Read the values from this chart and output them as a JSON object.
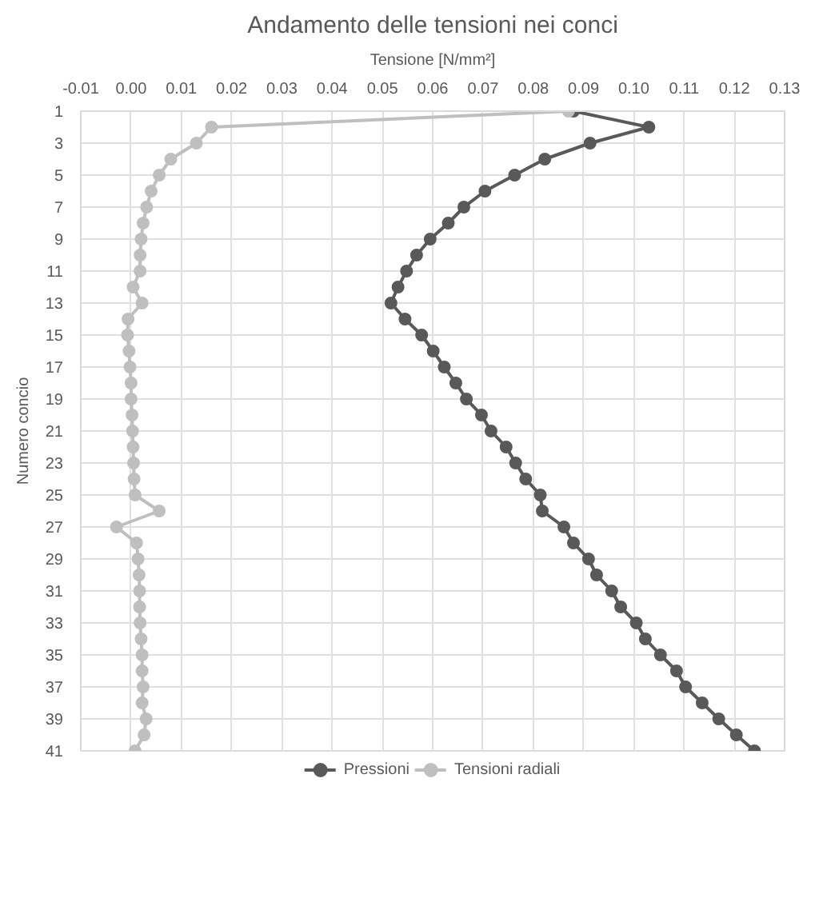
{
  "chart_data": {
    "type": "line",
    "title": "Andamento delle tensioni nei conci",
    "xlabel": "Tensione [N/mm²]",
    "ylabel": "Numero concio",
    "orientation": "horizontal",
    "x": [
      1,
      2,
      3,
      4,
      5,
      6,
      7,
      8,
      9,
      10,
      11,
      12,
      13,
      14,
      15,
      16,
      17,
      18,
      19,
      20,
      21,
      22,
      23,
      24,
      25,
      26,
      27,
      28,
      29,
      30,
      31,
      32,
      33,
      34,
      35,
      36,
      37,
      38,
      39,
      40,
      41
    ],
    "series": [
      {
        "name": "Pressioni",
        "color": "#595959",
        "values": [
          0.088,
          0.103,
          0.0913,
          0.0823,
          0.0763,
          0.0704,
          0.0662,
          0.0631,
          0.0595,
          0.0568,
          0.0548,
          0.0531,
          0.0517,
          0.0545,
          0.0578,
          0.0601,
          0.0623,
          0.0646,
          0.0667,
          0.0697,
          0.0716,
          0.0746,
          0.0765,
          0.0785,
          0.0814,
          0.0818,
          0.0861,
          0.088,
          0.091,
          0.0926,
          0.0956,
          0.0974,
          0.1005,
          0.1023,
          0.1053,
          0.1085,
          0.1103,
          0.1136,
          0.1169,
          0.1204,
          0.124
        ]
      },
      {
        "name": "Tensioni radiali",
        "color": "#bfbfbf",
        "values": [
          0.087,
          0.016,
          0.013,
          0.0079,
          0.0056,
          0.004,
          0.0031,
          0.0024,
          0.002,
          0.0018,
          0.0018,
          0.0004,
          0.0022,
          -0.0006,
          -0.0007,
          -0.0004,
          -0.0002,
          0.0,
          0.0,
          0.0002,
          0.0003,
          0.0004,
          0.0005,
          0.0006,
          0.0008,
          0.0056,
          -0.0029,
          0.0011,
          0.0014,
          0.0016,
          0.0017,
          0.0017,
          0.0018,
          0.002,
          0.0022,
          0.0022,
          0.0024,
          0.0022,
          0.003,
          0.0026,
          0.0008
        ]
      }
    ],
    "xlim": [
      -0.01,
      0.13
    ],
    "xticks": [
      -0.01,
      {
        "value": 0,
        "label": "0.00"
      },
      0.01,
      0.02,
      0.03,
      0.04,
      0.05,
      0.06,
      0.07,
      0.08,
      0.09,
      {
        "value": 0.1,
        "label": "0.10"
      },
      0.11,
      0.12,
      0.13
    ],
    "ylim": [
      41,
      1
    ],
    "yticks": [
      1,
      3,
      5,
      7,
      9,
      11,
      13,
      15,
      17,
      19,
      21,
      23,
      25,
      27,
      29,
      31,
      33,
      35,
      37,
      39,
      41
    ],
    "grid": true,
    "legend": "bottom",
    "marker": "circle",
    "line_style": "solid"
  }
}
